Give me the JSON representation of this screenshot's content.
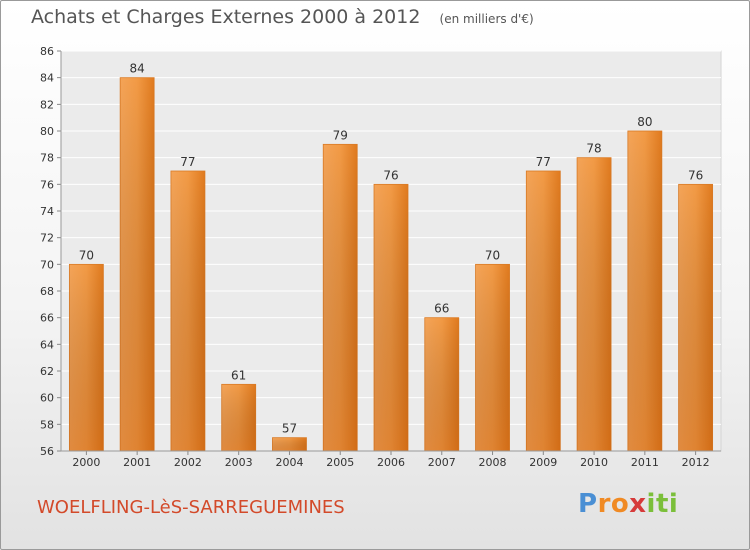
{
  "chart_data": {
    "type": "bar",
    "title": "Achats et Charges Externes 2000 à 2012",
    "subtitle": "(en milliers d'€)",
    "categories": [
      "2000",
      "2001",
      "2002",
      "2003",
      "2004",
      "2005",
      "2006",
      "2007",
      "2008",
      "2009",
      "2010",
      "2011",
      "2012"
    ],
    "values": [
      70,
      84,
      77,
      61,
      57,
      79,
      76,
      66,
      70,
      77,
      78,
      80,
      76
    ],
    "ylim": [
      56,
      86
    ],
    "yticks": [
      56,
      58,
      60,
      62,
      64,
      66,
      68,
      70,
      72,
      74,
      76,
      78,
      80,
      82,
      84,
      86
    ],
    "grid": true,
    "bar_color": "#f0892e"
  },
  "footer": {
    "commune": "WOELFLING-LèS-SARREGUEMINES",
    "logo_letters": [
      "P",
      "r",
      "o",
      "x",
      "i",
      "t",
      "i"
    ],
    "logo_colors": [
      "#4a8fd4",
      "#f08a24",
      "#f08a24",
      "#d63a3a",
      "#7bbf3a",
      "#7bbf3a",
      "#7bbf3a"
    ]
  }
}
